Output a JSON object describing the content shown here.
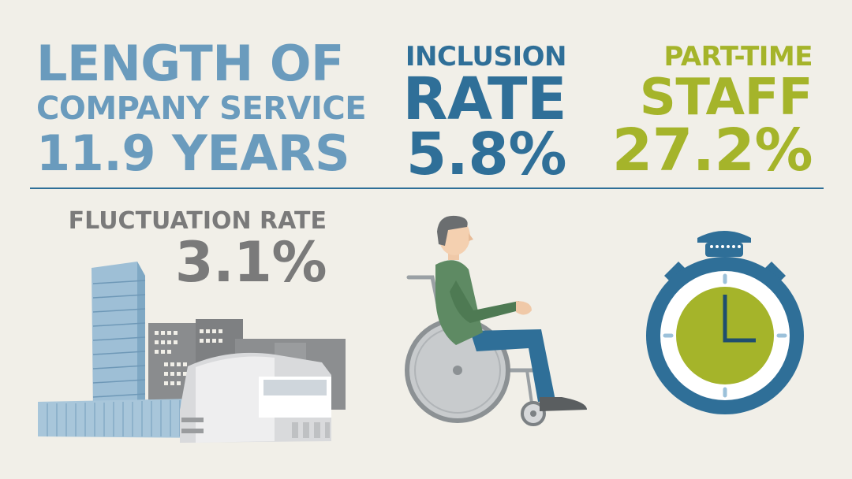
{
  "length_of_service": {
    "line1": "LENGTH OF",
    "line2": "COMPANY SERVICE",
    "value": "11.9 YEARS"
  },
  "inclusion": {
    "line1": "INCLUSION",
    "line2": "RATE",
    "value": "5.8%"
  },
  "part_time": {
    "line1": "PART-TIME",
    "line2": "STAFF",
    "value": "27.2%"
  },
  "fluctuation": {
    "label": "FLUCTUATION RATE",
    "value": "3.1%"
  },
  "icons": {
    "buildings": "company-buildings-icon",
    "wheelchair": "wheelchair-user-icon",
    "stopwatch": "stopwatch-icon"
  },
  "colors": {
    "background": "#f1efe8",
    "light_blue": "#6a9bbd",
    "dark_blue": "#2f6f98",
    "green": "#a5b42a",
    "gray": "#7a7a7a"
  }
}
